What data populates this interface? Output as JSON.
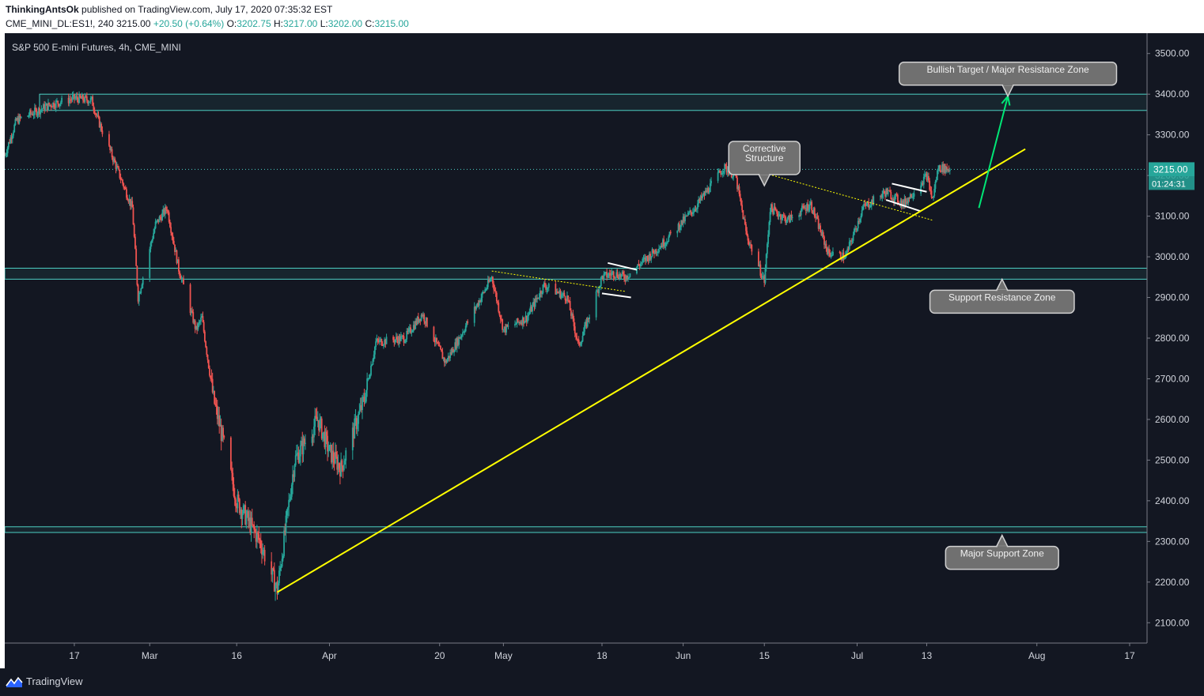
{
  "header": {
    "author": "ThinkingAntsOk",
    "published": "published on TradingView.com, July 17, 2020 07:35:32 EST",
    "symbol_interval": "CME_MINI_DL:ES1!, 240",
    "last": "3215.00",
    "change": "+20.50 (+0.64%)",
    "o_label": "O:",
    "o_value": "3202.75",
    "h_label": "H:",
    "h_value": "3217.00",
    "l_label": "L:",
    "l_value": "3202.00",
    "c_label": "C:",
    "c_value": "3215.00"
  },
  "footer": {
    "brand": "TradingView"
  },
  "colors": {
    "background": "#131722",
    "up": "#26a69a",
    "down": "#ef5350",
    "zone": "#4dd0c4",
    "trendline": "#ffff00",
    "arrow": "#00e676",
    "label_bg": "#707070",
    "price_badge": "#26a69a"
  },
  "chart_data": {
    "type": "candlestick",
    "title": "S&P 500 E-mini Futures, 4h, CME_MINI",
    "y_axis": {
      "range": [
        2050,
        3550
      ],
      "ticks": [
        "3500.00",
        "3400.00",
        "3300.00",
        "3200.00",
        "3100.00",
        "3000.00",
        "2900.00",
        "2800.00",
        "2700.00",
        "2600.00",
        "2500.00",
        "2400.00",
        "2300.00",
        "2200.00",
        "2100.00"
      ]
    },
    "x_axis": {
      "range": [
        "2020-02-05",
        "2020-08-20"
      ],
      "ticks": [
        {
          "label": "17",
          "date": "2020-02-17"
        },
        {
          "label": "Mar",
          "date": "2020-03-01"
        },
        {
          "label": "16",
          "date": "2020-03-16"
        },
        {
          "label": "Apr",
          "date": "2020-04-01"
        },
        {
          "label": "20",
          "date": "2020-04-20"
        },
        {
          "label": "May",
          "date": "2020-05-01"
        },
        {
          "label": "18",
          "date": "2020-05-18"
        },
        {
          "label": "Jun",
          "date": "2020-06-01"
        },
        {
          "label": "15",
          "date": "2020-06-15"
        },
        {
          "label": "Jul",
          "date": "2020-07-01"
        },
        {
          "label": "13",
          "date": "2020-07-13"
        },
        {
          "label": "Aug",
          "date": "2020-08-01"
        },
        {
          "label": "17",
          "date": "2020-08-17"
        }
      ]
    },
    "last_price": {
      "value": 3215.0,
      "label": "3215.00",
      "countdown": "01:24:31"
    },
    "price_path": [
      {
        "date": "2020-02-05",
        "value": 3250
      },
      {
        "date": "2020-02-07",
        "value": 3335
      },
      {
        "date": "2020-02-10",
        "value": 3355
      },
      {
        "date": "2020-02-13",
        "value": 3375
      },
      {
        "date": "2020-02-17",
        "value": 3390
      },
      {
        "date": "2020-02-20",
        "value": 3385
      },
      {
        "date": "2020-02-21",
        "value": 3340
      },
      {
        "date": "2020-02-24",
        "value": 3230
      },
      {
        "date": "2020-02-27",
        "value": 3120
      },
      {
        "date": "2020-02-28",
        "value": 2900
      },
      {
        "date": "2020-03-02",
        "value": 3080
      },
      {
        "date": "2020-03-04",
        "value": 3120
      },
      {
        "date": "2020-03-06",
        "value": 2970
      },
      {
        "date": "2020-03-09",
        "value": 2820
      },
      {
        "date": "2020-03-10",
        "value": 2850
      },
      {
        "date": "2020-03-12",
        "value": 2650
      },
      {
        "date": "2020-03-16",
        "value": 2400
      },
      {
        "date": "2020-03-18",
        "value": 2350
      },
      {
        "date": "2020-03-20",
        "value": 2300
      },
      {
        "date": "2020-03-23",
        "value": 2180
      },
      {
        "date": "2020-03-26",
        "value": 2500
      },
      {
        "date": "2020-03-30",
        "value": 2600
      },
      {
        "date": "2020-04-01",
        "value": 2520
      },
      {
        "date": "2020-04-03",
        "value": 2480
      },
      {
        "date": "2020-04-07",
        "value": 2650
      },
      {
        "date": "2020-04-09",
        "value": 2790
      },
      {
        "date": "2020-04-14",
        "value": 2800
      },
      {
        "date": "2020-04-17",
        "value": 2860
      },
      {
        "date": "2020-04-21",
        "value": 2740
      },
      {
        "date": "2020-04-23",
        "value": 2790
      },
      {
        "date": "2020-04-29",
        "value": 2950
      },
      {
        "date": "2020-05-01",
        "value": 2820
      },
      {
        "date": "2020-05-05",
        "value": 2850
      },
      {
        "date": "2020-05-08",
        "value": 2930
      },
      {
        "date": "2020-05-12",
        "value": 2900
      },
      {
        "date": "2020-05-14",
        "value": 2780
      },
      {
        "date": "2020-05-18",
        "value": 2950
      },
      {
        "date": "2020-05-20",
        "value": 2960
      },
      {
        "date": "2020-05-22",
        "value": 2950
      },
      {
        "date": "2020-05-26",
        "value": 3000
      },
      {
        "date": "2020-05-29",
        "value": 3040
      },
      {
        "date": "2020-06-03",
        "value": 3120
      },
      {
        "date": "2020-06-08",
        "value": 3220
      },
      {
        "date": "2020-06-10",
        "value": 3200
      },
      {
        "date": "2020-06-12",
        "value": 3050
      },
      {
        "date": "2020-06-15",
        "value": 2940
      },
      {
        "date": "2020-06-16",
        "value": 3120
      },
      {
        "date": "2020-06-19",
        "value": 3090
      },
      {
        "date": "2020-06-23",
        "value": 3130
      },
      {
        "date": "2020-06-26",
        "value": 3010
      },
      {
        "date": "2020-06-29",
        "value": 3000
      },
      {
        "date": "2020-07-02",
        "value": 3120
      },
      {
        "date": "2020-07-06",
        "value": 3160
      },
      {
        "date": "2020-07-09",
        "value": 3130
      },
      {
        "date": "2020-07-13",
        "value": 3200
      },
      {
        "date": "2020-07-14",
        "value": 3140
      },
      {
        "date": "2020-07-15",
        "value": 3220
      },
      {
        "date": "2020-07-17",
        "value": 3215
      }
    ],
    "zones": [
      {
        "name": "major-resistance",
        "from": 3360,
        "to": 3400,
        "start": "2020-02-11"
      },
      {
        "name": "support-resistance",
        "from": 2945,
        "to": 2972,
        "start": "2020-02-05"
      },
      {
        "name": "major-support",
        "from": 2322,
        "to": 2336,
        "start": "2020-02-05"
      }
    ],
    "trendline": {
      "start": {
        "date": "2020-03-23",
        "value": 2175
      },
      "end": {
        "date": "2020-07-30",
        "value": 3265
      }
    },
    "dotted_lines": [
      {
        "start": {
          "date": "2020-04-29",
          "value": 2965
        },
        "end": {
          "date": "2020-05-22",
          "value": 2915
        }
      },
      {
        "start": {
          "date": "2020-06-09",
          "value": 3230
        },
        "end": {
          "date": "2020-07-14",
          "value": 3090
        }
      }
    ],
    "flags": [
      {
        "top": [
          {
            "date": "2020-05-19",
            "value": 2985
          },
          {
            "date": "2020-05-24",
            "value": 2968
          }
        ],
        "bottom": [
          {
            "date": "2020-05-18",
            "value": 2910
          },
          {
            "date": "2020-05-23",
            "value": 2900
          }
        ]
      },
      {
        "top": [
          {
            "date": "2020-07-07",
            "value": 3180
          },
          {
            "date": "2020-07-13",
            "value": 3160
          }
        ],
        "bottom": [
          {
            "date": "2020-07-06",
            "value": 3140
          },
          {
            "date": "2020-07-12",
            "value": 3112
          }
        ]
      }
    ],
    "arrow": {
      "start": {
        "date": "2020-07-22",
        "value": 3120
      },
      "end": {
        "date": "2020-07-27",
        "value": 3395
      }
    },
    "annotations": [
      {
        "text": "Bullish Target / Major Resistance Zone",
        "pointer": "down",
        "anchor": {
          "date": "2020-07-27",
          "value": 3395
        }
      },
      {
        "text": "Corrective Structure",
        "lines": [
          "Corrective",
          "Structure"
        ],
        "pointer": "down",
        "anchor": {
          "date": "2020-06-15",
          "value": 3175
        }
      },
      {
        "text": "Support Resistance  Zone",
        "pointer": "up",
        "anchor": {
          "date": "2020-07-26",
          "value": 2945
        }
      },
      {
        "text": "Major Support Zone",
        "pointer": "up",
        "anchor": {
          "date": "2020-07-26",
          "value": 2315
        }
      }
    ]
  }
}
